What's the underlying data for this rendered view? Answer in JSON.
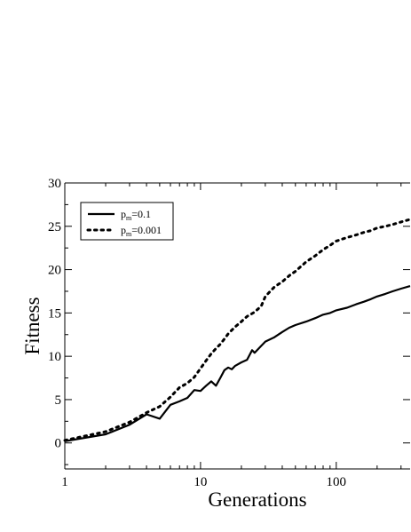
{
  "chart_data": {
    "type": "line",
    "title": "",
    "xlabel": "Generations",
    "ylabel": "Fitness",
    "xscale": "log",
    "xlim": [
      1,
      350
    ],
    "ylim": [
      -3,
      30
    ],
    "grid": false,
    "legend_position": "top-left",
    "x_ticks": [
      {
        "value": 1,
        "label": "1"
      },
      {
        "value": 10,
        "label": "10"
      },
      {
        "value": 100,
        "label": "100"
      }
    ],
    "y_ticks": [
      {
        "value": 0,
        "label": "0"
      },
      {
        "value": 5,
        "label": "5"
      },
      {
        "value": 10,
        "label": "10"
      },
      {
        "value": 15,
        "label": "15"
      },
      {
        "value": 20,
        "label": "20"
      },
      {
        "value": 25,
        "label": "25"
      },
      {
        "value": 30,
        "label": "30"
      }
    ],
    "series": [
      {
        "name_main": "p",
        "name_sub": "m",
        "name_rest": "=0.1",
        "style": "solid",
        "color": "#000000",
        "x": [
          1,
          2,
          3,
          4,
          5,
          6,
          7,
          8,
          9,
          10,
          11,
          12,
          13,
          14,
          15,
          16,
          17,
          18,
          20,
          22,
          24,
          25,
          28,
          30,
          32,
          35,
          40,
          45,
          50,
          60,
          70,
          80,
          90,
          100,
          120,
          140,
          160,
          180,
          200,
          230,
          260,
          300,
          350
        ],
        "y": [
          0.2,
          1.0,
          2.1,
          3.3,
          2.8,
          4.4,
          4.8,
          5.2,
          6.1,
          6.0,
          6.6,
          7.1,
          6.6,
          7.5,
          8.4,
          8.7,
          8.5,
          8.9,
          9.3,
          9.6,
          10.7,
          10.4,
          11.2,
          11.7,
          11.9,
          12.2,
          12.8,
          13.3,
          13.6,
          14.0,
          14.4,
          14.8,
          15.0,
          15.3,
          15.6,
          16.0,
          16.3,
          16.6,
          16.9,
          17.2,
          17.5,
          17.8,
          18.1
        ]
      },
      {
        "name_main": "p",
        "name_sub": "m",
        "name_rest": "=0.001",
        "style": "dotted",
        "color": "#000000",
        "x": [
          1,
          2,
          3,
          4,
          5,
          6,
          7,
          8,
          9,
          10,
          11,
          12,
          13,
          14,
          15,
          16,
          18,
          20,
          22,
          25,
          28,
          30,
          35,
          40,
          45,
          50,
          60,
          70,
          80,
          90,
          100,
          120,
          140,
          160,
          180,
          200,
          230,
          260,
          300,
          350
        ],
        "y": [
          0.3,
          1.3,
          2.4,
          3.5,
          4.2,
          5.3,
          6.4,
          6.9,
          7.6,
          8.6,
          9.5,
          10.3,
          10.9,
          11.4,
          12.0,
          12.6,
          13.4,
          14.0,
          14.6,
          15.1,
          15.8,
          16.9,
          18.0,
          18.6,
          19.3,
          19.8,
          20.9,
          21.6,
          22.3,
          22.8,
          23.3,
          23.7,
          24.0,
          24.3,
          24.5,
          24.8,
          25.0,
          25.2,
          25.5,
          25.8
        ]
      }
    ]
  }
}
